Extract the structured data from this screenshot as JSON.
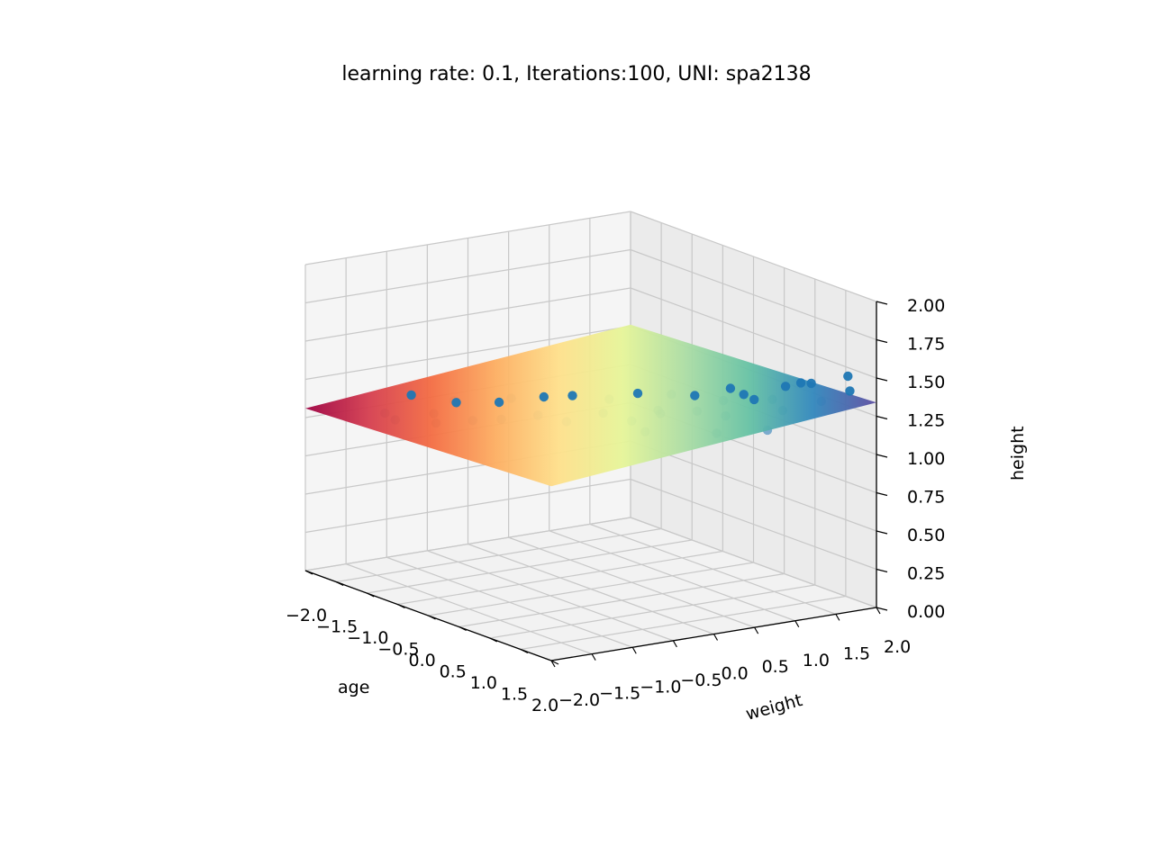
{
  "chart_data": {
    "type": "scatter3d",
    "title": "learning rate: 0.1, Iterations:100, UNI: spa2138",
    "xlabel": "age",
    "ylabel": "weight",
    "zlabel": "height",
    "xlim": [
      -2.0,
      2.0
    ],
    "ylim": [
      -2.0,
      2.0
    ],
    "zlim": [
      0.0,
      2.0
    ],
    "x_ticks": [
      "−2.0",
      "−1.5",
      "−1.0",
      "−0.5",
      "0.0",
      "0.5",
      "1.0",
      "1.5",
      "2.0"
    ],
    "y_ticks": [
      "−2.0",
      "−1.5",
      "−1.0",
      "−0.5",
      "0.0",
      "0.5",
      "1.0",
      "1.5",
      "2.0"
    ],
    "z_ticks": [
      "0.00",
      "0.25",
      "0.50",
      "0.75",
      "1.00",
      "1.25",
      "1.50",
      "1.75",
      "2.00"
    ],
    "grid": true,
    "marker_color": "#1f77b4",
    "surface_colormap": "Spectral",
    "surface": {
      "type": "plane",
      "x_range": [
        -2.0,
        2.0
      ],
      "y_range": [
        -2.0,
        2.0
      ],
      "description": "fitted regression plane"
    },
    "points": [
      {
        "age": -1.5,
        "weight": -1.4,
        "height": 1.05
      },
      {
        "age": -1.6,
        "weight": -1.0,
        "height": 1.12
      },
      {
        "age": -1.2,
        "weight": -1.5,
        "height": 1.06
      },
      {
        "age": -1.1,
        "weight": -1.1,
        "height": 1.08
      },
      {
        "age": -1.0,
        "weight": -0.9,
        "height": 1.15
      },
      {
        "age": -0.8,
        "weight": -1.3,
        "height": 1.08
      },
      {
        "age": -0.7,
        "weight": -0.6,
        "height": 1.17
      },
      {
        "age": -0.6,
        "weight": -1.0,
        "height": 1.1
      },
      {
        "age": -0.5,
        "weight": -0.2,
        "height": 1.2
      },
      {
        "age": -0.4,
        "weight": -0.8,
        "height": 1.12
      },
      {
        "age": -0.3,
        "weight": 0.0,
        "height": 1.22
      },
      {
        "age": -0.2,
        "weight": -0.5,
        "height": 1.15
      },
      {
        "age": -0.1,
        "weight": 0.3,
        "height": 1.2
      },
      {
        "age": 0.0,
        "weight": -0.3,
        "height": 1.12
      },
      {
        "age": 0.1,
        "weight": 0.5,
        "height": 1.25
      },
      {
        "age": 0.2,
        "weight": 0.0,
        "height": 1.18
      },
      {
        "age": 0.3,
        "weight": 0.6,
        "height": 1.16
      },
      {
        "age": 0.4,
        "weight": 0.2,
        "height": 1.14
      },
      {
        "age": 0.5,
        "weight": 0.9,
        "height": 1.26
      },
      {
        "age": 0.6,
        "weight": 0.4,
        "height": 1.2
      },
      {
        "age": 0.7,
        "weight": 1.1,
        "height": 1.24
      },
      {
        "age": 0.8,
        "weight": 0.7,
        "height": 1.22
      },
      {
        "age": 0.9,
        "weight": 1.2,
        "height": 1.3
      },
      {
        "age": 1.0,
        "weight": 0.9,
        "height": 1.2
      },
      {
        "age": 1.1,
        "weight": 1.4,
        "height": 1.28
      },
      {
        "age": 1.2,
        "weight": 1.1,
        "height": 1.32
      },
      {
        "age": 1.3,
        "weight": 1.6,
        "height": 1.4
      },
      {
        "age": 1.4,
        "weight": 1.3,
        "height": 1.26
      },
      {
        "age": 1.5,
        "weight": 1.7,
        "height": 1.3
      },
      {
        "age": 1.6,
        "weight": 1.5,
        "height": 1.45
      },
      {
        "age": 1.7,
        "weight": 1.9,
        "height": 1.38
      },
      {
        "age": 1.8,
        "weight": 1.8,
        "height": 1.5
      },
      {
        "age": -1.3,
        "weight": -0.7,
        "height": 1.1
      },
      {
        "age": -0.9,
        "weight": -0.3,
        "height": 1.14
      },
      {
        "age": 0.25,
        "weight": 0.8,
        "height": 1.24
      },
      {
        "age": 0.55,
        "weight": 1.3,
        "height": 1.28
      },
      {
        "age": 1.05,
        "weight": 1.6,
        "height": 1.34
      },
      {
        "age": 0.75,
        "weight": 0.1,
        "height": 1.13
      },
      {
        "age": 1.25,
        "weight": 0.6,
        "height": 1.15
      },
      {
        "age": 1.55,
        "weight": 1.0,
        "height": 1.18
      }
    ]
  }
}
